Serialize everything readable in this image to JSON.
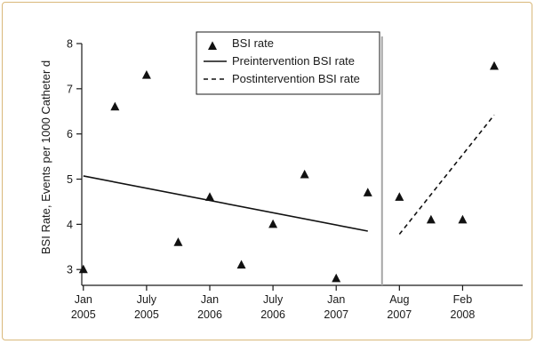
{
  "chart_data": {
    "type": "scatter",
    "ylabel": "BSI Rate, Events per 1000 Catheter d",
    "xlabel": "",
    "ylim": [
      2.65,
      8.0
    ],
    "xlim": [
      -0.05,
      13.9
    ],
    "yticks": [
      3,
      4,
      5,
      6,
      7,
      8
    ],
    "xticks": [
      {
        "pos": 0,
        "line1": "Jan",
        "line2": "2005"
      },
      {
        "pos": 2,
        "line1": "July",
        "line2": "2005"
      },
      {
        "pos": 4,
        "line1": "Jan",
        "line2": "2006"
      },
      {
        "pos": 6,
        "line1": "July",
        "line2": "2006"
      },
      {
        "pos": 8,
        "line1": "Jan",
        "line2": "2007"
      },
      {
        "pos": 10,
        "line1": "Aug",
        "line2": "2007"
      },
      {
        "pos": 12,
        "line1": "Feb",
        "line2": "2008"
      }
    ],
    "intervention_x": 9.45,
    "series": [
      {
        "name": "BSI rate",
        "kind": "markers",
        "marker": "triangle",
        "x": [
          0,
          1,
          2,
          3,
          4,
          5,
          6,
          7,
          8,
          9,
          10,
          11,
          12,
          13
        ],
        "y": [
          3.0,
          6.6,
          7.3,
          3.6,
          4.6,
          3.1,
          4.0,
          5.1,
          2.8,
          4.7,
          4.6,
          4.1,
          4.1,
          7.5
        ]
      },
      {
        "name": "Preintervention BSI rate",
        "kind": "line",
        "dash": "solid",
        "x": [
          0,
          9
        ],
        "y": [
          5.07,
          3.85
        ]
      },
      {
        "name": "Postintervention BSI rate",
        "kind": "line",
        "dash": "dashed",
        "x": [
          10,
          13
        ],
        "y": [
          3.78,
          6.42
        ]
      }
    ]
  }
}
